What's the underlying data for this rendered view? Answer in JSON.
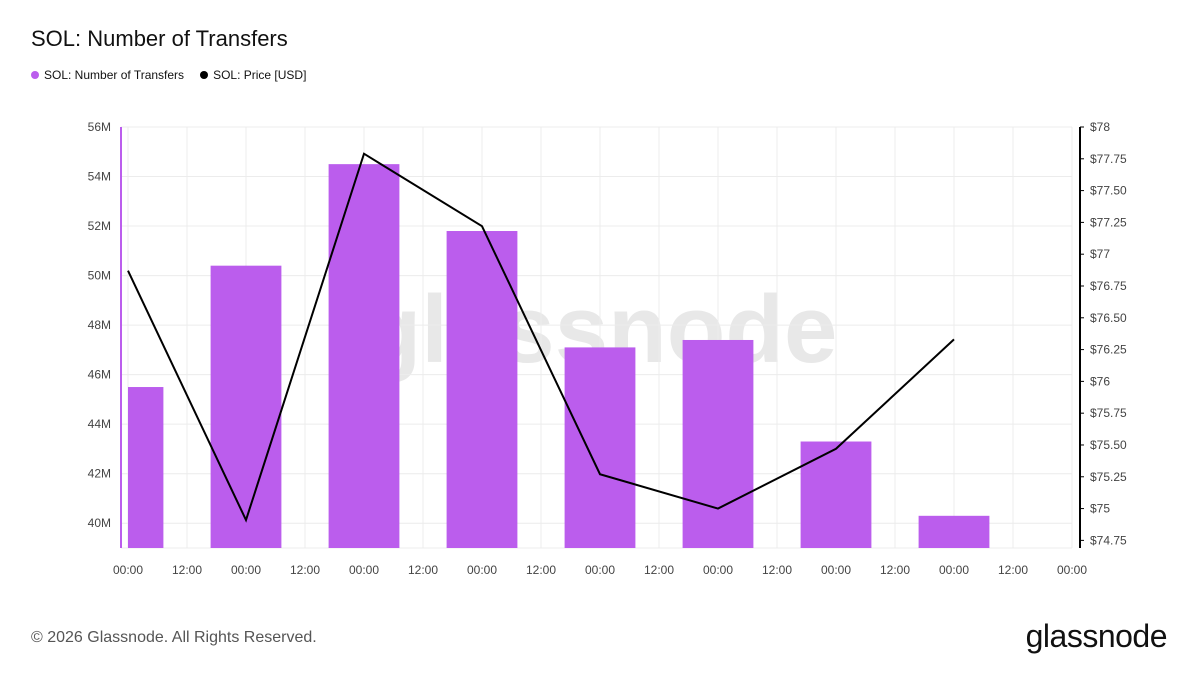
{
  "title": "SOL: Number of Transfers",
  "legend": [
    {
      "label": "SOL: Number of Transfers",
      "color": "#bb5ded"
    },
    {
      "label": "SOL: Price [USD]",
      "color": "#000000"
    }
  ],
  "watermark": "glassnode",
  "footer": "© 2026 Glassnode. All Rights Reserved.",
  "brand": "glassnode",
  "colors": {
    "bar": "#bb5ded",
    "line": "#000000",
    "grid": "#ececec",
    "left_axis": "#bb5ded",
    "right_axis": "#000000"
  },
  "chart_data": {
    "type": "bar",
    "x_tick_labels": [
      "00:00",
      "12:00",
      "00:00",
      "12:00",
      "00:00",
      "12:00",
      "00:00",
      "12:00",
      "00:00",
      "12:00",
      "00:00",
      "12:00",
      "00:00",
      "12:00",
      "00:00",
      "12:00",
      "00:00"
    ],
    "y_left": {
      "ylim": [
        39,
        56
      ],
      "ticks": [
        40,
        42,
        44,
        46,
        48,
        50,
        52,
        54,
        56
      ],
      "tick_labels": [
        "40M",
        "42M",
        "44M",
        "46M",
        "48M",
        "50M",
        "52M",
        "54M",
        "56M"
      ]
    },
    "y_right": {
      "ylim": [
        74.69,
        78
      ],
      "ticks": [
        74.75,
        75,
        75.25,
        75.5,
        75.75,
        76,
        76.25,
        76.5,
        76.75,
        77,
        77.25,
        77.5,
        77.75,
        78
      ],
      "tick_labels": [
        "$74.75",
        "$75",
        "$75.25",
        "$75.50",
        "$75.75",
        "$76",
        "$76.25",
        "$76.50",
        "$76.75",
        "$77",
        "$77.25",
        "$77.50",
        "$77.75",
        "$78"
      ]
    },
    "grid": true,
    "legend_position": "top-left",
    "series": [
      {
        "name": "SOL: Number of Transfers",
        "type": "bar",
        "axis": "left",
        "x": [
          0,
          2,
          4,
          6,
          8,
          10,
          12,
          14
        ],
        "values": [
          45.5,
          50.4,
          54.5,
          51.8,
          47.1,
          47.4,
          43.3,
          40.3
        ]
      },
      {
        "name": "SOL: Price [USD]",
        "type": "line",
        "axis": "right",
        "x": [
          0,
          2,
          4,
          6,
          8,
          10,
          12,
          14
        ],
        "values": [
          76.87,
          74.91,
          77.79,
          77.22,
          75.27,
          75.0,
          75.47,
          76.33
        ]
      }
    ]
  }
}
